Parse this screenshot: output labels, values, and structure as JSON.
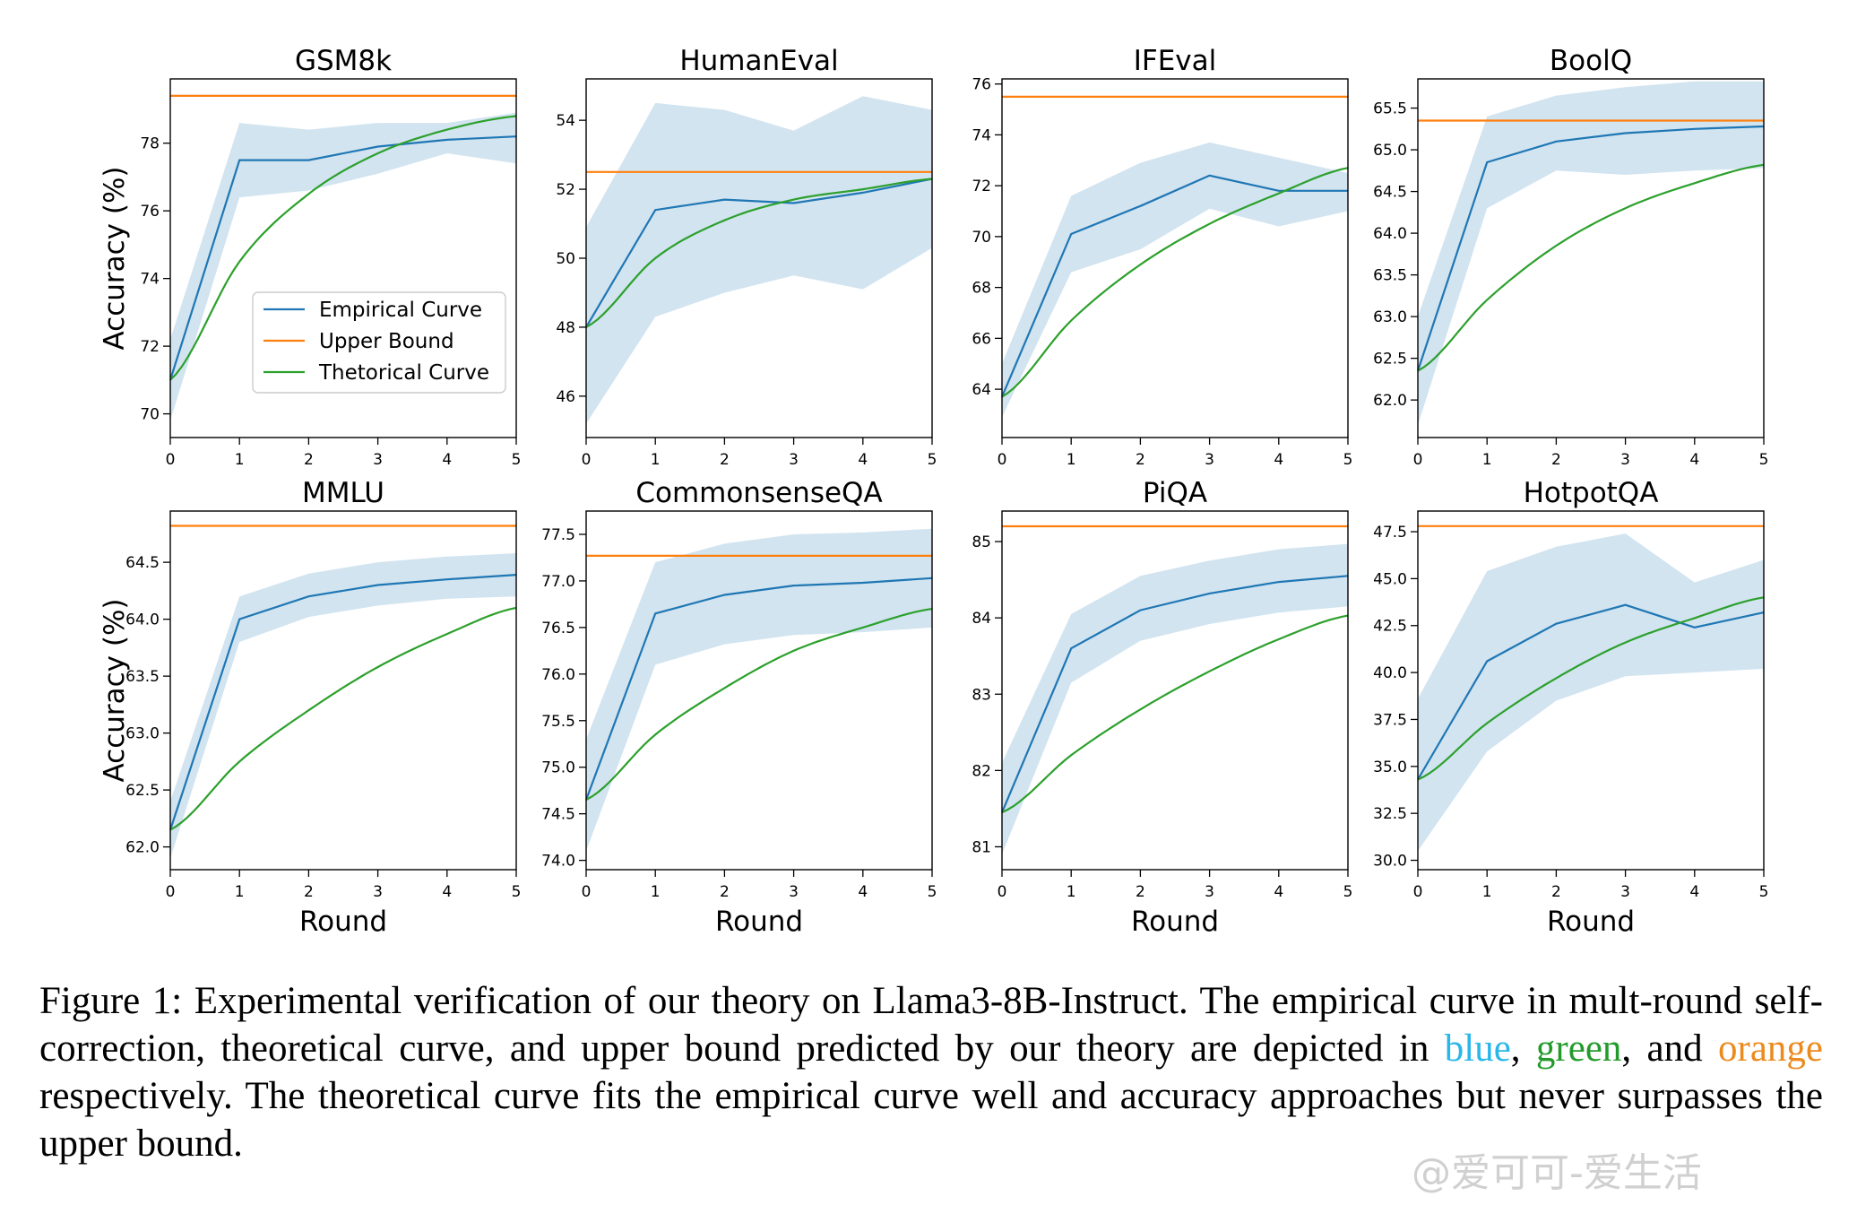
{
  "legend": {
    "position": "lower-right of first panel",
    "entries": [
      {
        "label": "Empirical Curve",
        "color": "#1f77b4"
      },
      {
        "label": "Upper Bound",
        "color": "#ff7f0e"
      },
      {
        "label": "Thetorical Curve",
        "color": "#2ca02c"
      }
    ]
  },
  "colors": {
    "empirical": "#1f77b4",
    "band": "#1f77b4",
    "upper": "#ff7f0e",
    "theoretical": "#2ca02c"
  },
  "chart_data": [
    {
      "type": "line",
      "title": "GSM8k",
      "xlabel": "",
      "ylabel": "Accuracy (%)",
      "x": [
        0,
        1,
        2,
        3,
        4,
        5
      ],
      "xlim": [
        0,
        5
      ],
      "ylim": [
        69.3,
        79.9
      ],
      "yticks": [
        70,
        72,
        74,
        76,
        78
      ],
      "grid": false,
      "series": [
        {
          "name": "Empirical Curve",
          "values": [
            71.0,
            77.5,
            77.5,
            77.9,
            78.1,
            78.2
          ]
        },
        {
          "name": "Upper Bound",
          "values": [
            79.4,
            79.4,
            79.4,
            79.4,
            79.4,
            79.4
          ]
        },
        {
          "name": "Thetorical Curve",
          "values": [
            71.0,
            74.5,
            76.5,
            77.7,
            78.4,
            78.8
          ]
        }
      ],
      "band": {
        "upper": [
          72.2,
          78.6,
          78.4,
          78.6,
          78.6,
          78.9
        ],
        "lower": [
          69.8,
          76.4,
          76.6,
          77.1,
          77.7,
          77.4
        ]
      }
    },
    {
      "type": "line",
      "title": "HumanEval",
      "xlabel": "",
      "ylabel": "",
      "x": [
        0,
        1,
        2,
        3,
        4,
        5
      ],
      "xlim": [
        0,
        5
      ],
      "ylim": [
        44.8,
        55.2
      ],
      "yticks": [
        46,
        48,
        50,
        52,
        54
      ],
      "grid": false,
      "series": [
        {
          "name": "Empirical Curve",
          "values": [
            48.0,
            51.4,
            51.7,
            51.6,
            51.9,
            52.3
          ]
        },
        {
          "name": "Upper Bound",
          "values": [
            52.5,
            52.5,
            52.5,
            52.5,
            52.5,
            52.5
          ]
        },
        {
          "name": "Thetorical Curve",
          "values": [
            48.0,
            50.0,
            51.1,
            51.7,
            52.0,
            52.3
          ]
        }
      ],
      "band": {
        "upper": [
          50.9,
          54.5,
          54.3,
          53.7,
          54.7,
          54.3
        ],
        "lower": [
          45.2,
          48.3,
          49.0,
          49.5,
          49.1,
          50.3
        ]
      }
    },
    {
      "type": "line",
      "title": "IFEval",
      "xlabel": "",
      "ylabel": "",
      "x": [
        0,
        1,
        2,
        3,
        4,
        5
      ],
      "xlim": [
        0,
        5
      ],
      "ylim": [
        62.1,
        76.2
      ],
      "yticks": [
        64,
        66,
        68,
        70,
        72,
        74,
        76
      ],
      "grid": false,
      "series": [
        {
          "name": "Empirical Curve",
          "values": [
            63.7,
            70.1,
            71.2,
            72.4,
            71.8,
            71.8
          ]
        },
        {
          "name": "Upper Bound",
          "values": [
            75.5,
            75.5,
            75.5,
            75.5,
            75.5,
            75.5
          ]
        },
        {
          "name": "Thetorical Curve",
          "values": [
            63.7,
            66.7,
            68.9,
            70.5,
            71.7,
            72.7
          ]
        }
      ],
      "band": {
        "upper": [
          65.0,
          71.6,
          72.9,
          73.7,
          73.1,
          72.5
        ],
        "lower": [
          62.9,
          68.6,
          69.5,
          71.1,
          70.4,
          71.0
        ]
      }
    },
    {
      "type": "line",
      "title": "BoolQ",
      "xlabel": "",
      "ylabel": "",
      "x": [
        0,
        1,
        2,
        3,
        4,
        5
      ],
      "xlim": [
        0,
        5
      ],
      "ylim": [
        61.55,
        65.85
      ],
      "yticks": [
        62.0,
        62.5,
        63.0,
        63.5,
        64.0,
        64.5,
        65.0,
        65.5
      ],
      "grid": false,
      "series": [
        {
          "name": "Empirical Curve",
          "values": [
            62.35,
            64.85,
            65.1,
            65.2,
            65.25,
            65.28
          ]
        },
        {
          "name": "Upper Bound",
          "values": [
            65.35,
            65.35,
            65.35,
            65.35,
            65.35,
            65.35
          ]
        },
        {
          "name": "Thetorical Curve",
          "values": [
            62.35,
            63.2,
            63.85,
            64.3,
            64.6,
            64.82
          ]
        }
      ],
      "band": {
        "upper": [
          63.0,
          65.4,
          65.65,
          65.75,
          65.82,
          65.82
        ],
        "lower": [
          61.7,
          64.3,
          64.75,
          64.7,
          64.75,
          64.78
        ]
      }
    },
    {
      "type": "line",
      "title": "MMLU",
      "xlabel": "Round",
      "ylabel": "Accuracy (%)",
      "x": [
        0,
        1,
        2,
        3,
        4,
        5
      ],
      "xlim": [
        0,
        5
      ],
      "ylim": [
        61.8,
        64.95
      ],
      "yticks": [
        62.0,
        62.5,
        63.0,
        63.5,
        64.0,
        64.5
      ],
      "grid": false,
      "series": [
        {
          "name": "Empirical Curve",
          "values": [
            62.15,
            64.0,
            64.2,
            64.3,
            64.35,
            64.39
          ]
        },
        {
          "name": "Upper Bound",
          "values": [
            64.82,
            64.82,
            64.82,
            64.82,
            64.82,
            64.82
          ]
        },
        {
          "name": "Thetorical Curve",
          "values": [
            62.15,
            62.75,
            63.2,
            63.58,
            63.87,
            64.1
          ]
        }
      ],
      "band": {
        "upper": [
          62.4,
          64.2,
          64.4,
          64.5,
          64.55,
          64.58
        ],
        "lower": [
          61.9,
          63.8,
          64.02,
          64.12,
          64.18,
          64.2
        ]
      }
    },
    {
      "type": "line",
      "title": "CommonsenseQA",
      "xlabel": "Round",
      "ylabel": "",
      "x": [
        0,
        1,
        2,
        3,
        4,
        5
      ],
      "xlim": [
        0,
        5
      ],
      "ylim": [
        73.9,
        77.75
      ],
      "yticks": [
        74.0,
        74.5,
        75.0,
        75.5,
        76.0,
        76.5,
        77.0,
        77.5
      ],
      "grid": false,
      "series": [
        {
          "name": "Empirical Curve",
          "values": [
            74.65,
            76.65,
            76.85,
            76.95,
            76.98,
            77.03
          ]
        },
        {
          "name": "Upper Bound",
          "values": [
            77.27,
            77.27,
            77.27,
            77.27,
            77.27,
            77.27
          ]
        },
        {
          "name": "Thetorical Curve",
          "values": [
            74.65,
            75.35,
            75.85,
            76.25,
            76.5,
            76.7
          ]
        }
      ],
      "band": {
        "upper": [
          75.3,
          77.2,
          77.4,
          77.5,
          77.52,
          77.56
        ],
        "lower": [
          74.1,
          76.1,
          76.32,
          76.42,
          76.45,
          76.5
        ]
      }
    },
    {
      "type": "line",
      "title": "PiQA",
      "xlabel": "Round",
      "ylabel": "",
      "x": [
        0,
        1,
        2,
        3,
        4,
        5
      ],
      "xlim": [
        0,
        5
      ],
      "ylim": [
        80.7,
        85.4
      ],
      "yticks": [
        81,
        82,
        83,
        84,
        85
      ],
      "grid": false,
      "series": [
        {
          "name": "Empirical Curve",
          "values": [
            81.45,
            83.6,
            84.1,
            84.32,
            84.47,
            84.55
          ]
        },
        {
          "name": "Upper Bound",
          "values": [
            85.2,
            85.2,
            85.2,
            85.2,
            85.2,
            85.2
          ]
        },
        {
          "name": "Thetorical Curve",
          "values": [
            81.45,
            82.2,
            82.8,
            83.3,
            83.72,
            84.03
          ]
        }
      ],
      "band": {
        "upper": [
          82.1,
          84.05,
          84.55,
          84.75,
          84.9,
          84.97
        ],
        "lower": [
          80.9,
          83.15,
          83.7,
          83.92,
          84.07,
          84.15
        ]
      }
    },
    {
      "type": "line",
      "title": "HotpotQA",
      "xlabel": "Round",
      "ylabel": "",
      "x": [
        0,
        1,
        2,
        3,
        4,
        5
      ],
      "xlim": [
        0,
        5
      ],
      "ylim": [
        29.5,
        48.6
      ],
      "yticks": [
        30.0,
        32.5,
        35.0,
        37.5,
        40.0,
        42.5,
        45.0,
        47.5
      ],
      "grid": false,
      "series": [
        {
          "name": "Empirical Curve",
          "values": [
            34.3,
            40.6,
            42.6,
            43.6,
            42.4,
            43.2
          ]
        },
        {
          "name": "Upper Bound",
          "values": [
            47.8,
            47.8,
            47.8,
            47.8,
            47.8,
            47.8
          ]
        },
        {
          "name": "Thetorical Curve",
          "values": [
            34.3,
            37.3,
            39.7,
            41.6,
            42.9,
            44.0
          ]
        }
      ],
      "band": {
        "upper": [
          38.6,
          45.4,
          46.7,
          47.4,
          44.8,
          46.0
        ],
        "lower": [
          30.5,
          35.8,
          38.5,
          39.8,
          40.0,
          40.2
        ]
      }
    }
  ],
  "caption": {
    "lead": "Figure 1: Experimental verification of our theory on Llama3-8B-Instruct. The empirical curve in mult-round self-correction, theoretical curve, and upper bound predicted by our theory are depicted in ",
    "blue": "blue",
    "sep1": ", ",
    "green": "green",
    "sep2": ", and ",
    "orange": "orange",
    "tail": " respectively. The theoretical curve fits the empirical curve well and accuracy approaches but never surpasses the upper bound."
  },
  "watermark": "@爱可可-爱生活"
}
